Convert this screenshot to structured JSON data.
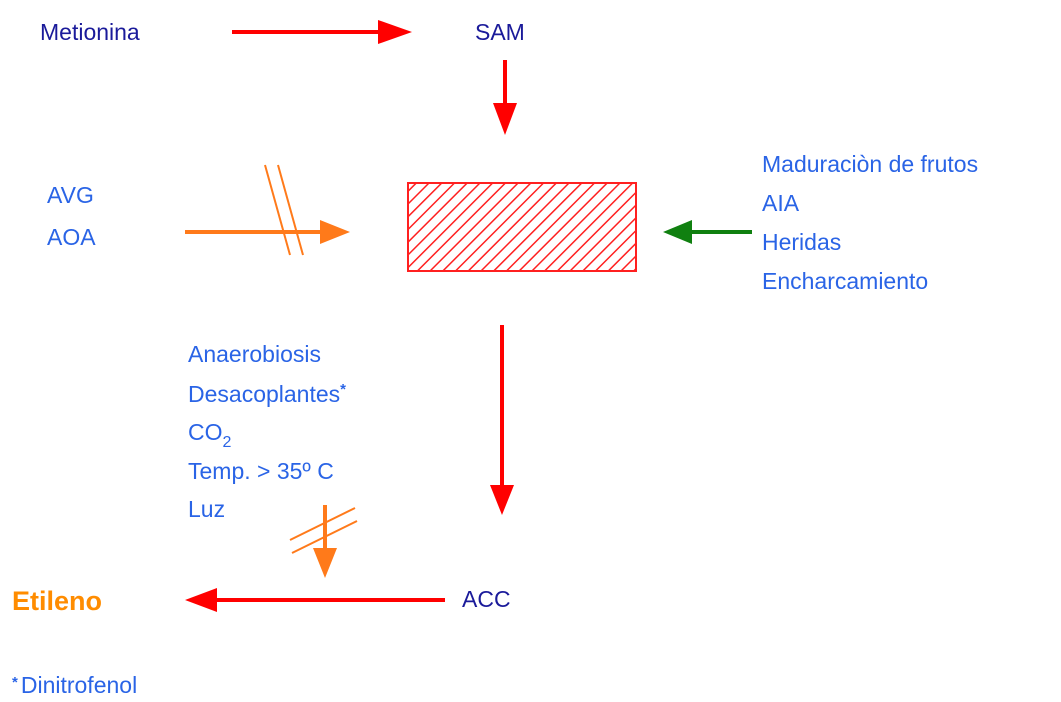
{
  "nodes": {
    "metionina": "Metionina",
    "sam": "SAM",
    "acc": "ACC",
    "etileno": "Etileno"
  },
  "inhibitors_1": [
    "AVG",
    "AOA"
  ],
  "promoters": [
    "Maduraciòn de frutos",
    "AIA",
    "Heridas",
    "Encharcamiento"
  ],
  "inhibitors_2": [
    {
      "text": "Anaerobiosis"
    },
    {
      "text": "Desacoplantes",
      "mark": "*"
    },
    {
      "text": "CO",
      "sub": "2"
    },
    {
      "text": "Temp. > 35º C"
    },
    {
      "text": "Luz"
    }
  ],
  "footnote": {
    "mark": "*",
    "text": "Dinitrofenol"
  }
}
